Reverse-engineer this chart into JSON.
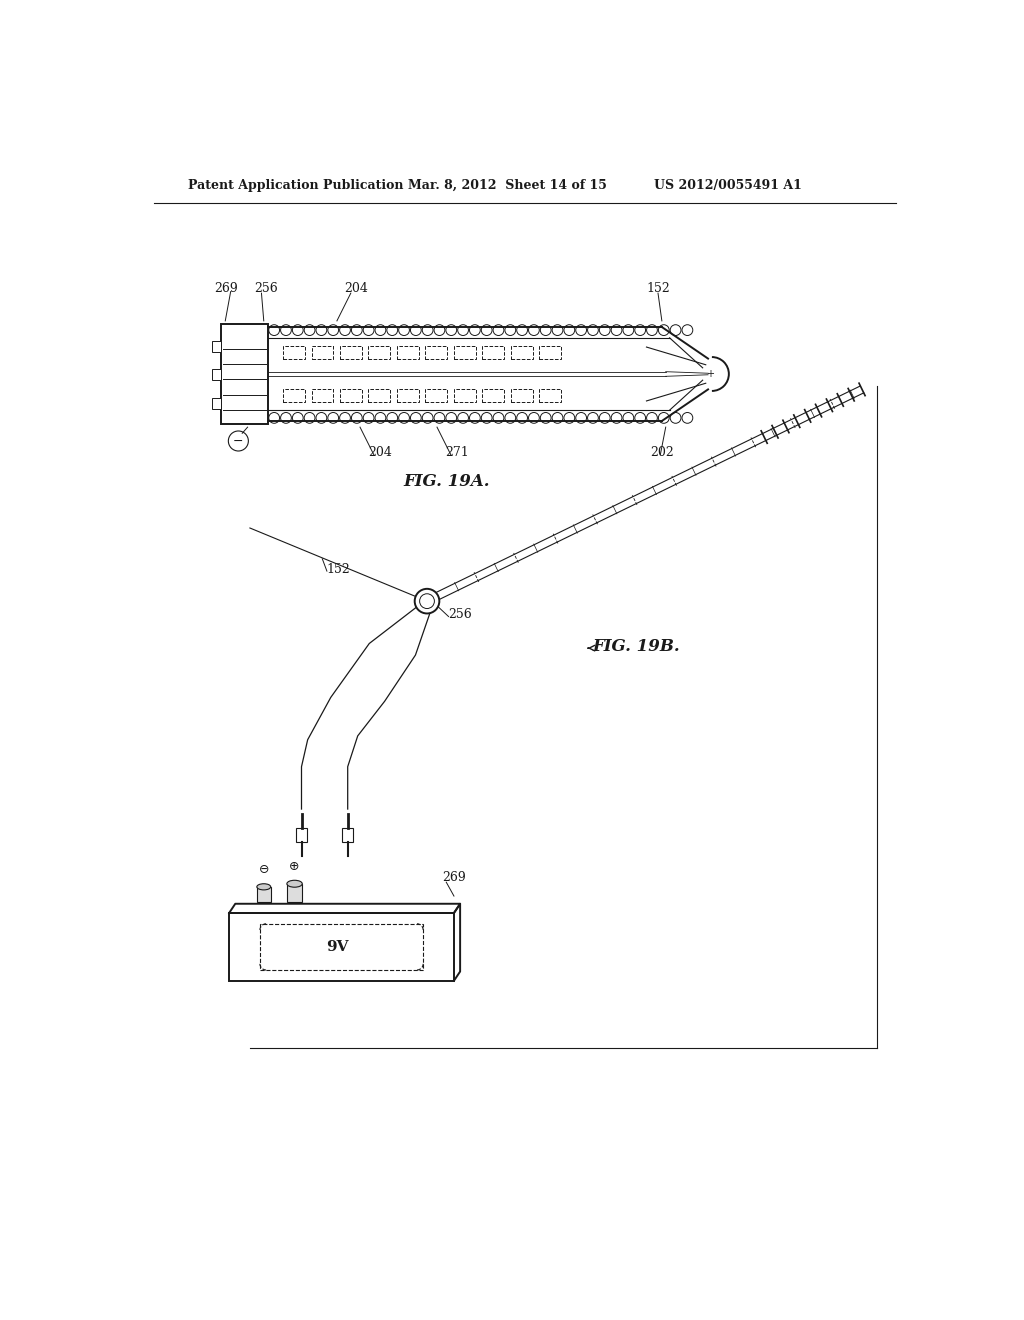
{
  "background_color": "#ffffff",
  "header_left": "Patent Application Publication",
  "header_mid": "Mar. 8, 2012  Sheet 14 of 15",
  "header_right": "US 2012/0055491 A1",
  "fig19a_label": "FIG. 19A.",
  "fig19b_label": "FIG. 19B.",
  "line_color": "#1a1a1a",
  "line_width": 1.4,
  "thin_line": 0.8,
  "label_fontsize": 9,
  "fig_label_fontsize": 12
}
